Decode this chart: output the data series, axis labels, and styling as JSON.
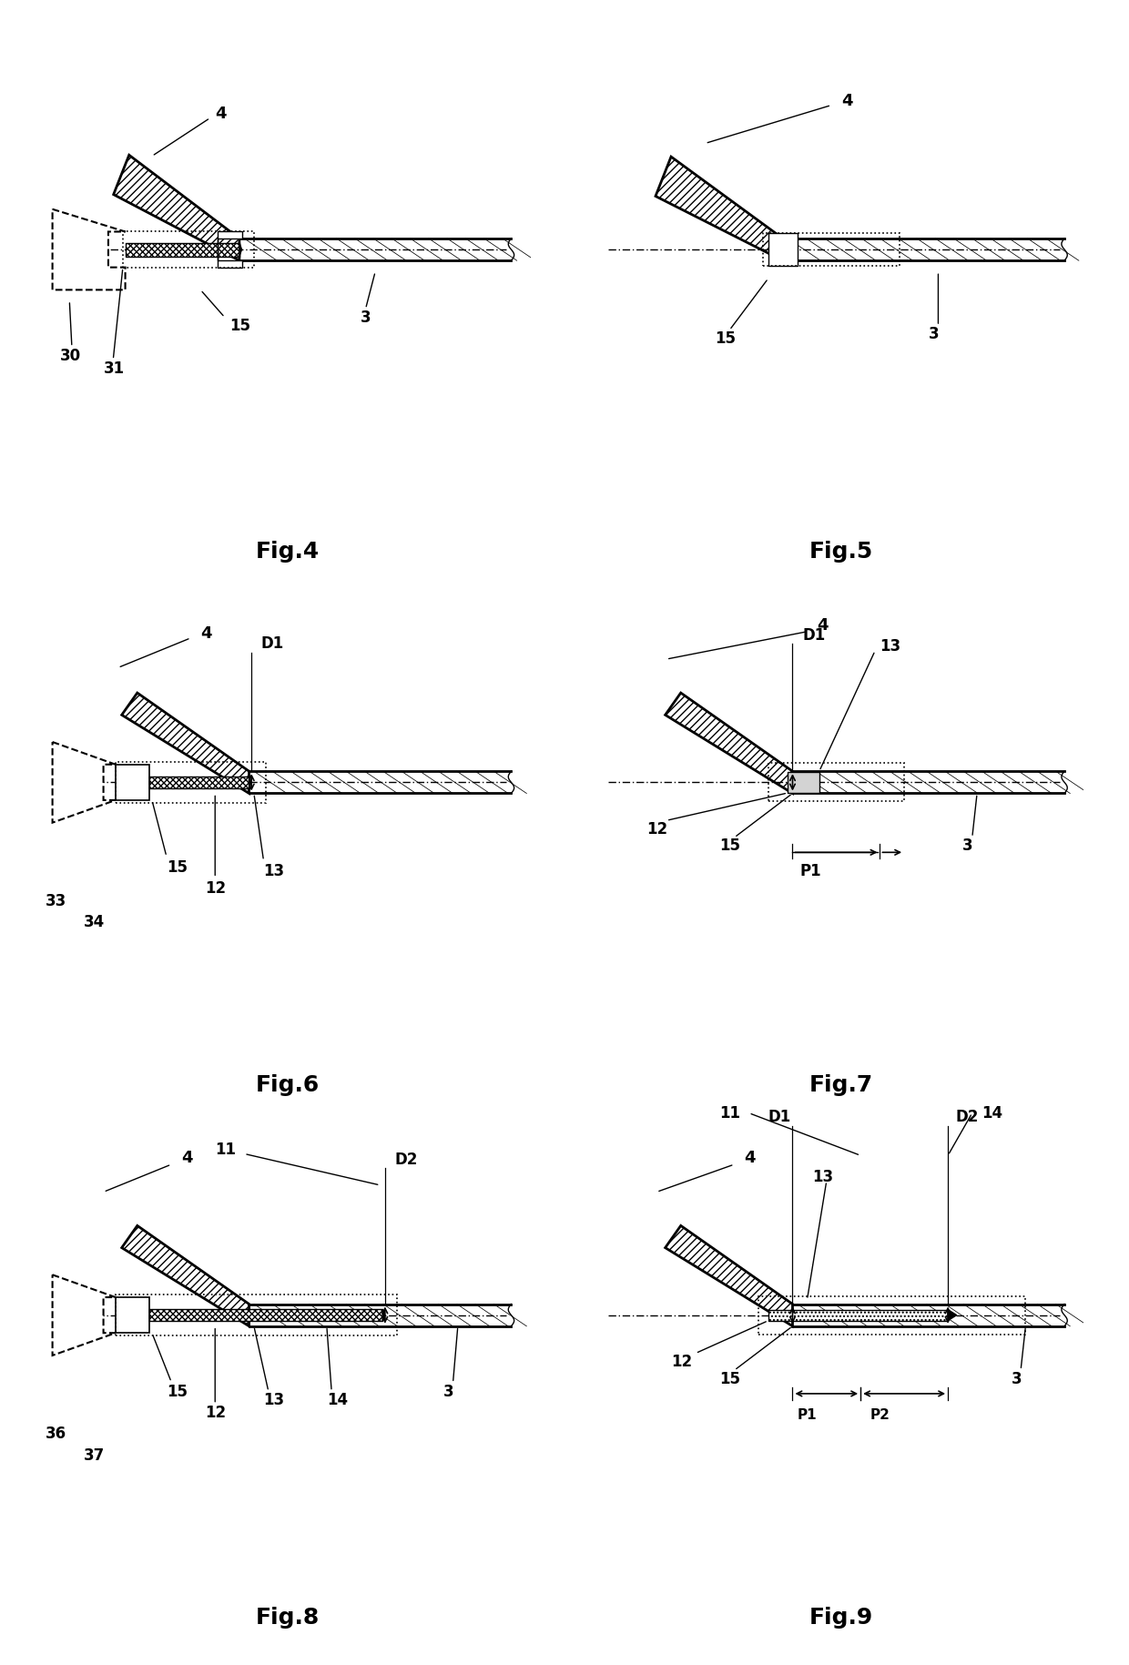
{
  "figure_labels": [
    "Fig.4",
    "Fig.5",
    "Fig.6",
    "Fig.7",
    "Fig.8",
    "Fig.9"
  ],
  "bg_color": "#ffffff",
  "fig_width": 12.4,
  "fig_height": 18.29,
  "font_size_fig": 18,
  "font_size_label": 12
}
